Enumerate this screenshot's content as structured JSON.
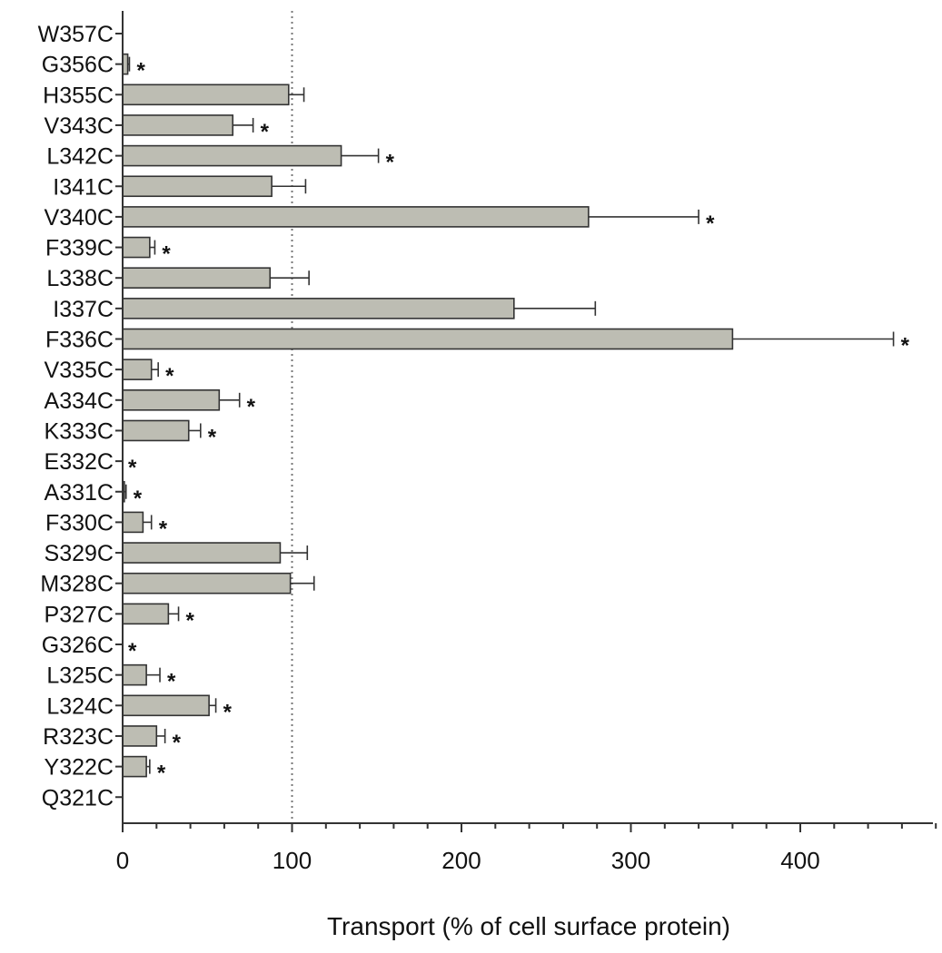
{
  "chart_data": {
    "type": "bar",
    "orientation": "horizontal",
    "xlabel": "Transport (% of cell surface protein)",
    "xlim": [
      0,
      480
    ],
    "xticks": [
      0,
      100,
      200,
      300,
      400
    ],
    "reference_line": 100,
    "grid": false,
    "categories": [
      "W357C",
      "G356C",
      "H355C",
      "V343C",
      "L342C",
      "I341C",
      "V340C",
      "F339C",
      "L338C",
      "I337C",
      "F336C",
      "V335C",
      "A334C",
      "K333C",
      "E332C",
      "A331C",
      "F330C",
      "S329C",
      "M328C",
      "P327C",
      "G326C",
      "L325C",
      "L324C",
      "R323C",
      "Y322C",
      "Q321C"
    ],
    "values": [
      0,
      3,
      98,
      65,
      129,
      88,
      275,
      16,
      87,
      231,
      360,
      17,
      57,
      39,
      0,
      1,
      12,
      93,
      99,
      27,
      0,
      14,
      51,
      20,
      14,
      0
    ],
    "errors": [
      0,
      1,
      9,
      12,
      22,
      20,
      65,
      3,
      23,
      48,
      95,
      4,
      12,
      7,
      0,
      1,
      5,
      16,
      14,
      6,
      0,
      8,
      4,
      5,
      2,
      0
    ],
    "significant": [
      false,
      true,
      false,
      true,
      true,
      false,
      true,
      true,
      false,
      false,
      true,
      true,
      true,
      true,
      true,
      true,
      true,
      false,
      false,
      true,
      true,
      true,
      true,
      true,
      true,
      false
    ],
    "star_symbol": "*"
  }
}
